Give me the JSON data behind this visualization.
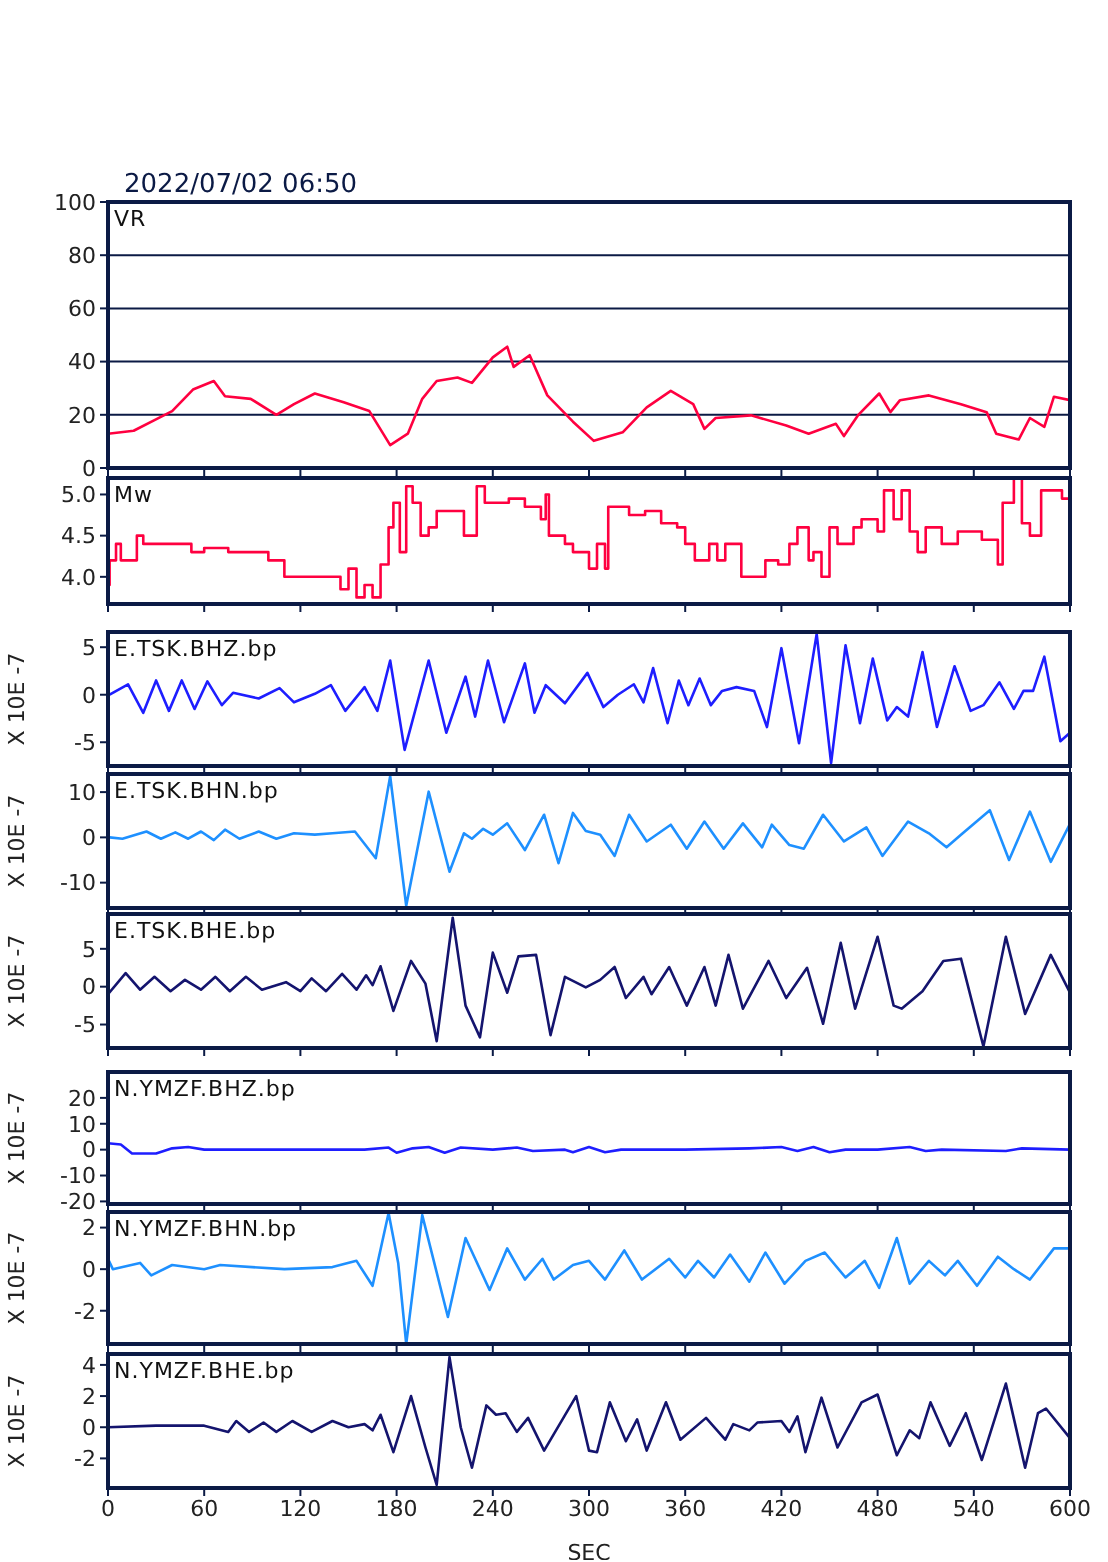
{
  "chart_data": [
    {
      "type": "line",
      "title": "2022/07/02 06:50",
      "xlim": [
        0,
        600
      ],
      "xticks": [
        0,
        60,
        120,
        180,
        240,
        300,
        360,
        420,
        480,
        540,
        600
      ],
      "ylim": [
        0,
        100
      ],
      "yticks": [
        0,
        20,
        40,
        60,
        80,
        100
      ],
      "grid": "y",
      "tick_labels": "y",
      "series": [
        {
          "name": "VR",
          "color": "#ff0040",
          "x": [
            0,
            16,
            29,
            40,
            53,
            66,
            73,
            89,
            105,
            116,
            129,
            147,
            163,
            176,
            187,
            196,
            205,
            218,
            227,
            240,
            249,
            253,
            263,
            274,
            290,
            303,
            321,
            336,
            351,
            365,
            372,
            379,
            401,
            423,
            437,
            454,
            459,
            468,
            481,
            488,
            494,
            512,
            532,
            548,
            554,
            568,
            575,
            584,
            590,
            600
          ],
          "values": [
            12.9,
            14,
            18,
            21.4,
            29.5,
            32.7,
            27,
            26,
            20,
            24,
            28,
            24.7,
            21.4,
            8.6,
            12.9,
            26,
            32.7,
            34,
            32,
            41.6,
            45.6,
            38,
            42.4,
            27.3,
            17.4,
            10.2,
            13.4,
            22.8,
            29,
            24,
            14.7,
            18.8,
            19.8,
            16,
            12.9,
            16.6,
            12,
            20,
            28,
            21,
            25.5,
            27.3,
            24,
            21,
            12.9,
            10.7,
            18.8,
            15.5,
            26.8,
            25.5
          ]
        }
      ]
    },
    {
      "type": "step",
      "xlim": [
        0,
        600
      ],
      "xticks": [
        0,
        60,
        120,
        180,
        240,
        300,
        360,
        420,
        480,
        540,
        600
      ],
      "ylim": [
        3.67,
        5.2
      ],
      "yticks": [
        {
          "value": 4,
          "label": "4.0"
        },
        4.5,
        {
          "value": 5,
          "label": "5.0"
        }
      ],
      "tick_labels": "y",
      "series": [
        {
          "name": "Mw",
          "color": "#ff0040",
          "x": [
            0,
            1,
            5,
            8,
            18,
            22,
            40,
            52,
            60,
            75,
            100,
            110,
            130,
            145,
            150,
            155,
            160,
            165,
            170,
            175,
            178,
            182,
            186,
            190,
            195,
            200,
            205,
            220,
            222,
            230,
            235,
            250,
            260,
            270,
            273,
            275,
            285,
            290,
            300,
            305,
            310,
            312,
            325,
            335,
            345,
            355,
            360,
            366,
            375,
            380,
            385,
            395,
            410,
            418,
            425,
            430,
            437,
            440,
            445,
            450,
            455,
            465,
            470,
            480,
            484,
            490,
            495,
            500,
            505,
            510,
            520,
            530,
            545,
            555,
            558,
            565,
            570,
            575,
            582,
            592,
            595,
            600
          ],
          "values": [
            3.9,
            4.2,
            4.4,
            4.2,
            4.5,
            4.4,
            4.4,
            4.3,
            4.35,
            4.3,
            4.2,
            4.0,
            4.0,
            3.85,
            4.1,
            3.75,
            3.9,
            3.75,
            4.15,
            4.6,
            4.9,
            4.3,
            5.1,
            4.9,
            4.5,
            4.6,
            4.8,
            4.8,
            4.5,
            5.1,
            4.9,
            4.95,
            4.85,
            4.7,
            5.0,
            4.5,
            4.4,
            4.3,
            4.1,
            4.4,
            4.1,
            4.85,
            4.75,
            4.8,
            4.65,
            4.6,
            4.4,
            4.2,
            4.4,
            4.2,
            4.4,
            4.0,
            4.2,
            4.15,
            4.4,
            4.6,
            4.2,
            4.3,
            4.0,
            4.6,
            4.4,
            4.6,
            4.7,
            4.55,
            5.05,
            4.7,
            5.05,
            4.55,
            4.3,
            4.6,
            4.4,
            4.55,
            4.45,
            4.15,
            4.9,
            5.2,
            4.65,
            4.5,
            5.05,
            5.05,
            4.95,
            4.95
          ]
        }
      ]
    },
    {
      "type": "line",
      "ylabel": "X 10E -7",
      "xlim": [
        0,
        600
      ],
      "xticks": [
        0,
        60,
        120,
        180,
        240,
        300,
        360,
        420,
        480,
        540,
        600
      ],
      "ylim": [
        -7.5,
        6.6
      ],
      "yticks": [
        -5,
        0,
        5
      ],
      "tick_labels": "y",
      "series": [
        {
          "name": "E.TSK.BHZ.bp",
          "color": "#1e1eff",
          "x": [
            1,
            12.5,
            22,
            30,
            38,
            46,
            54,
            62,
            71,
            78,
            94,
            107,
            116,
            129,
            139,
            148,
            160,
            168,
            176,
            185,
            200,
            211,
            223,
            229,
            237,
            247,
            260,
            266,
            273,
            285,
            299,
            309,
            318,
            328,
            334,
            340,
            349,
            356,
            362,
            369,
            376,
            383,
            392,
            403,
            411,
            420,
            431,
            442,
            451,
            460,
            469,
            477,
            486,
            492,
            499,
            508,
            517,
            528,
            538,
            546,
            556,
            565,
            571,
            577,
            584,
            594,
            600
          ],
          "values": [
            0,
            1.1,
            -1.9,
            1.5,
            -1.7,
            1.5,
            -1.5,
            1.4,
            -1.1,
            0.2,
            -0.4,
            0.7,
            -0.8,
            0.1,
            1.0,
            -1.7,
            0.8,
            -1.7,
            3.6,
            -5.8,
            3.6,
            -4.0,
            1.9,
            -2.3,
            3.6,
            -2.9,
            3.3,
            -1.9,
            1.0,
            -0.9,
            2.3,
            -1.3,
            0,
            1.1,
            -0.8,
            2.8,
            -3.0,
            1.5,
            -1.1,
            1.7,
            -1.1,
            0.4,
            0.8,
            0.4,
            -3.4,
            4.9,
            -5.1,
            6.4,
            -7.2,
            5.2,
            -3.0,
            3.8,
            -2.7,
            -1.3,
            -2.3,
            4.5,
            -3.4,
            3.0,
            -1.7,
            -1.1,
            1.3,
            -1.5,
            0.4,
            0.4,
            4.0,
            -4.9,
            -4.0
          ]
        }
      ]
    },
    {
      "type": "line",
      "ylabel": "X 10E -7",
      "xlim": [
        0,
        600
      ],
      "xticks": [
        0,
        60,
        120,
        180,
        240,
        300,
        360,
        420,
        480,
        540,
        600
      ],
      "ylim": [
        -15.6,
        14
      ],
      "yticks": [
        -10,
        0,
        10
      ],
      "tick_labels": "y",
      "series": [
        {
          "name": "E.TSK.BHN.bp",
          "color": "#1e90ff",
          "x": [
            1,
            9,
            24,
            33,
            42,
            50,
            58,
            66,
            73,
            82,
            94,
            105,
            116,
            129,
            140,
            154,
            167,
            176,
            186,
            200,
            213,
            222,
            227,
            234,
            240,
            249,
            260,
            272,
            281,
            290,
            298,
            307,
            316,
            325,
            336,
            351,
            361,
            372,
            384,
            396,
            408,
            414,
            425,
            434,
            446,
            459,
            473,
            483,
            499,
            512,
            523,
            532,
            550,
            562,
            575,
            588,
            600
          ],
          "values": [
            0,
            -0.3,
            1.3,
            -0.3,
            1.1,
            -0.3,
            1.3,
            -0.6,
            1.7,
            -0.3,
            1.3,
            -0.3,
            0.9,
            0.6,
            0.9,
            1.3,
            -4.6,
            13.5,
            -15.1,
            10.1,
            -7.6,
            0.9,
            -0.3,
            1.9,
            0.6,
            3.1,
            -2.8,
            5.0,
            -5.7,
            5.4,
            1.4,
            0.6,
            -4.1,
            5.0,
            -0.9,
            2.8,
            -2.5,
            3.5,
            -2.5,
            3.1,
            -2.2,
            2.8,
            -1.7,
            -2.5,
            5.0,
            -0.9,
            2.2,
            -4.1,
            3.5,
            0.9,
            -2.2,
            0.6,
            6.0,
            -5.0,
            5.7,
            -5.4,
            3.0
          ]
        }
      ]
    },
    {
      "type": "line",
      "ylabel": "X 10E -7",
      "xlim": [
        0,
        600
      ],
      "xticks": [
        0,
        60,
        120,
        180,
        240,
        300,
        360,
        420,
        480,
        540,
        600
      ],
      "ylim": [
        -8.1,
        9.6
      ],
      "yticks": [
        -5,
        0,
        5
      ],
      "tick_labels": "y",
      "series": [
        {
          "name": "E.TSK.BHE.bp",
          "color": "#14146e",
          "x": [
            0,
            11,
            20,
            29,
            39,
            48,
            58,
            67,
            76,
            86,
            96,
            111,
            120,
            127,
            136,
            146,
            155,
            161,
            165,
            170,
            178,
            189,
            198,
            205,
            215,
            223,
            232,
            240,
            249,
            256,
            267,
            276,
            285,
            298,
            307,
            316,
            323,
            334,
            339,
            350,
            361,
            372,
            379,
            387,
            396,
            412,
            423,
            436,
            446,
            457,
            466,
            480,
            490,
            495,
            508,
            521,
            532,
            546,
            560,
            572,
            588,
            600
          ],
          "values": [
            -1.0,
            1.8,
            -0.4,
            1.3,
            -0.6,
            0.9,
            -0.4,
            1.3,
            -0.6,
            1.3,
            -0.4,
            0.6,
            -0.6,
            1.1,
            -0.6,
            1.7,
            -0.4,
            1.5,
            0.2,
            2.7,
            -3.2,
            3.4,
            0.4,
            -7.2,
            9.1,
            -2.5,
            -6.7,
            4.5,
            -0.8,
            4.0,
            4.2,
            -6.4,
            1.3,
            -0.1,
            0.9,
            2.6,
            -1.5,
            1.3,
            -1.0,
            2.6,
            -2.5,
            2.6,
            -2.5,
            4.2,
            -2.9,
            3.4,
            -1.5,
            2.5,
            -4.9,
            5.8,
            -2.9,
            6.6,
            -2.5,
            -2.9,
            -0.6,
            3.4,
            3.7,
            -7.9,
            6.6,
            -3.6,
            4.2,
            -0.8
          ]
        }
      ]
    },
    {
      "type": "line",
      "ylabel": "X 10E -7",
      "xlim": [
        0,
        600
      ],
      "xticks": [
        0,
        60,
        120,
        180,
        240,
        300,
        360,
        420,
        480,
        540,
        600
      ],
      "ylim": [
        -21,
        30
      ],
      "yticks": [
        -20,
        -10,
        0,
        10,
        20
      ],
      "tick_labels": "y",
      "series": [
        {
          "name": "N.YMZF.BHZ.bp",
          "color": "#1e1eff",
          "x": [
            0,
            8,
            15,
            30,
            40,
            50,
            60,
            80,
            120,
            160,
            175,
            180,
            190,
            200,
            210,
            220,
            240,
            255,
            265,
            285,
            290,
            300,
            310,
            320,
            360,
            400,
            420,
            430,
            440,
            450,
            460,
            480,
            500,
            510,
            520,
            560,
            570,
            600
          ],
          "values": [
            2.5,
            2,
            -1.5,
            -1.5,
            0.5,
            1,
            0,
            0,
            0,
            0,
            0.8,
            -1.2,
            0.5,
            1,
            -1.2,
            0.8,
            0,
            0.8,
            -0.5,
            0,
            -1.0,
            1,
            -1,
            0,
            0,
            0.5,
            1,
            -0.5,
            1,
            -1,
            0,
            0,
            1,
            -0.5,
            0,
            -0.5,
            0.5,
            0
          ]
        }
      ]
    },
    {
      "type": "line",
      "ylabel": "X 10E -7",
      "xlim": [
        0,
        600
      ],
      "xticks": [
        0,
        60,
        120,
        180,
        240,
        300,
        360,
        420,
        480,
        540,
        600
      ],
      "ylim": [
        -3.6,
        2.75
      ],
      "yticks": [
        -2,
        0,
        2
      ],
      "tick_labels": "y",
      "series": [
        {
          "name": "N.YMZF.BHN.bp",
          "color": "#1e90ff",
          "x": [
            0,
            3,
            20,
            27,
            40,
            60,
            70,
            110,
            140,
            155,
            165,
            175,
            181,
            186,
            196,
            212,
            223,
            238,
            249,
            260,
            271,
            278,
            290,
            300,
            310,
            322,
            333,
            350,
            360,
            368,
            378,
            388,
            400,
            410,
            422,
            435,
            447,
            460,
            472,
            481,
            492,
            500,
            512,
            522,
            530,
            542,
            555,
            565,
            575,
            590,
            600
          ],
          "values": [
            0.5,
            0,
            0.3,
            -0.3,
            0.2,
            0,
            0.2,
            0,
            0.1,
            0.4,
            -0.8,
            2.7,
            0.3,
            -3.6,
            2.6,
            -2.3,
            1.5,
            -1.0,
            1.0,
            -0.5,
            0.5,
            -0.5,
            0.2,
            0.4,
            -0.5,
            0.9,
            -0.5,
            0.5,
            -0.4,
            0.4,
            -0.4,
            0.7,
            -0.6,
            0.8,
            -0.7,
            0.4,
            0.8,
            -0.4,
            0.4,
            -0.9,
            1.5,
            -0.7,
            0.4,
            -0.3,
            0.4,
            -0.8,
            0.6,
            0,
            -0.5,
            1.0,
            1.0
          ]
        }
      ]
    },
    {
      "type": "line",
      "ylabel": "X 10E -7",
      "xlabel": "SEC",
      "xlim": [
        0,
        600
      ],
      "xticks": [
        0,
        60,
        120,
        180,
        240,
        300,
        360,
        420,
        480,
        540,
        600
      ],
      "ylim": [
        -3.9,
        4.7
      ],
      "yticks": [
        -2,
        0,
        2,
        4
      ],
      "series": [
        {
          "name": "N.YMZF.BHE.bp",
          "color": "#14146e",
          "x": [
            0,
            30,
            60,
            75,
            80,
            88,
            97,
            105,
            115,
            127,
            140,
            150,
            160,
            165,
            170,
            178,
            189,
            198,
            205,
            213,
            220,
            227,
            236,
            242,
            248,
            255,
            262,
            272,
            292,
            300,
            305,
            313,
            323,
            330,
            336,
            348,
            357,
            373,
            385,
            390,
            400,
            405,
            420,
            425,
            430,
            435,
            445,
            455,
            470,
            480,
            492,
            500,
            506,
            513,
            525,
            535,
            545,
            560,
            572,
            580,
            585,
            600
          ],
          "values": [
            0,
            0.1,
            0.1,
            -0.3,
            0.4,
            -0.3,
            0.3,
            -0.3,
            0.4,
            -0.3,
            0.4,
            0,
            0.2,
            -0.2,
            0.8,
            -1.6,
            2.0,
            -1.3,
            -3.7,
            4.5,
            0,
            -2.6,
            1.4,
            0.8,
            0.9,
            -0.3,
            0.6,
            -1.5,
            2.0,
            -1.5,
            -1.6,
            1.6,
            -0.9,
            0.5,
            -1.5,
            1.6,
            -0.8,
            0.6,
            -0.8,
            0.2,
            -0.2,
            0.3,
            0.4,
            -0.3,
            0.7,
            -1.6,
            1.9,
            -1.3,
            1.6,
            2.1,
            -1.8,
            -0.2,
            -0.7,
            1.6,
            -1.2,
            0.9,
            -2.1,
            2.8,
            -2.6,
            0.9,
            1.2,
            -0.7
          ]
        }
      ]
    }
  ]
}
